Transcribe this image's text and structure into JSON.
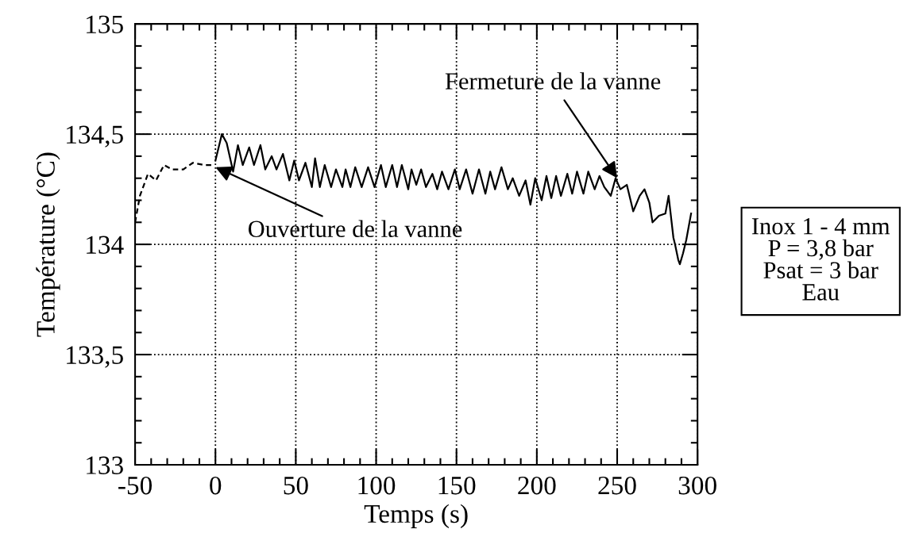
{
  "chart_data": {
    "type": "line",
    "xlabel": "Temps (s)",
    "ylabel": "Température (°C)",
    "xlim": [
      -50,
      300
    ],
    "ylim": [
      133,
      135
    ],
    "xticks": [
      -50,
      {
        "value": -40,
        "label": null
      },
      {
        "value": -30,
        "label": null
      },
      {
        "value": -20,
        "label": null
      },
      {
        "value": -10,
        "label": null
      },
      0,
      {
        "value": 10,
        "label": null
      },
      {
        "value": 20,
        "label": null
      },
      {
        "value": 30,
        "label": null
      },
      {
        "value": 40,
        "label": null
      },
      50,
      {
        "value": 60,
        "label": null
      },
      {
        "value": 70,
        "label": null
      },
      {
        "value": 80,
        "label": null
      },
      {
        "value": 90,
        "label": null
      },
      100,
      {
        "value": 110,
        "label": null
      },
      {
        "value": 120,
        "label": null
      },
      {
        "value": 130,
        "label": null
      },
      {
        "value": 140,
        "label": null
      },
      150,
      {
        "value": 160,
        "label": null
      },
      {
        "value": 170,
        "label": null
      },
      {
        "value": 180,
        "label": null
      },
      {
        "value": 190,
        "label": null
      },
      200,
      {
        "value": 210,
        "label": null
      },
      {
        "value": 220,
        "label": null
      },
      {
        "value": 230,
        "label": null
      },
      {
        "value": 240,
        "label": null
      },
      250,
      {
        "value": 260,
        "label": null
      },
      {
        "value": 270,
        "label": null
      },
      {
        "value": 280,
        "label": null
      },
      {
        "value": 290,
        "label": null
      },
      300
    ],
    "yticks": [
      133,
      {
        "value": 133.1,
        "label": null
      },
      {
        "value": 133.2,
        "label": null
      },
      {
        "value": 133.3,
        "label": null
      },
      {
        "value": 133.4,
        "label": null
      },
      {
        "value": 133.5,
        "label": "133,5"
      },
      {
        "value": 133.6,
        "label": null
      },
      {
        "value": 133.7,
        "label": null
      },
      {
        "value": 133.8,
        "label": null
      },
      {
        "value": 133.9,
        "label": null
      },
      134,
      {
        "value": 134.1,
        "label": null
      },
      {
        "value": 134.2,
        "label": null
      },
      {
        "value": 134.3,
        "label": null
      },
      {
        "value": 134.4,
        "label": null
      },
      {
        "value": 134.5,
        "label": "134,5"
      },
      {
        "value": 134.6,
        "label": null
      },
      {
        "value": 134.7,
        "label": null
      },
      {
        "value": 134.8,
        "label": null
      },
      {
        "value": 134.9,
        "label": null
      },
      135
    ],
    "grid": true,
    "legend": false,
    "series": [
      {
        "color": "#000000",
        "line_style": "dashed",
        "x": [
          -50,
          -47,
          -42,
          -37,
          -32,
          -27,
          -20,
          -14,
          -7,
          -2
        ],
        "values": [
          134.1,
          134.22,
          134.32,
          134.29,
          134.36,
          134.34,
          134.34,
          134.37,
          134.36,
          134.36
        ]
      },
      {
        "color": "#000000",
        "line_style": "solid",
        "x": [
          0,
          4,
          7,
          11,
          14,
          17,
          21,
          24,
          28,
          31,
          35,
          38,
          42,
          46,
          49,
          52,
          56,
          60,
          62,
          65,
          68,
          72,
          75,
          79,
          81,
          84,
          87,
          91,
          95,
          99,
          103,
          106,
          110,
          113,
          116,
          120,
          122,
          125,
          128,
          131,
          135,
          138,
          141,
          145,
          149,
          152,
          156,
          160,
          164,
          168,
          171,
          174,
          178,
          182,
          185,
          189,
          193,
          196,
          199,
          203,
          206,
          209,
          212,
          215,
          219,
          222,
          225,
          229,
          232,
          236,
          239,
          242,
          246,
          249,
          252,
          256,
          260,
          264,
          267,
          270,
          272,
          276,
          280,
          282,
          285,
          286,
          288,
          289,
          291,
          293,
          296
        ],
        "values": [
          134.38,
          134.5,
          134.46,
          134.33,
          134.45,
          134.36,
          134.44,
          134.36,
          134.45,
          134.34,
          134.4,
          134.34,
          134.41,
          134.29,
          134.38,
          134.29,
          134.37,
          134.26,
          134.39,
          134.26,
          134.36,
          134.26,
          134.34,
          134.26,
          134.34,
          134.26,
          134.35,
          134.26,
          134.35,
          134.26,
          134.36,
          134.26,
          134.36,
          134.26,
          134.36,
          134.25,
          134.34,
          134.27,
          134.34,
          134.26,
          134.32,
          134.25,
          134.33,
          134.25,
          134.34,
          134.25,
          134.34,
          134.23,
          134.34,
          134.23,
          134.33,
          134.25,
          134.35,
          134.25,
          134.3,
          134.22,
          134.29,
          134.18,
          134.3,
          134.2,
          134.31,
          134.21,
          134.31,
          134.22,
          134.32,
          134.23,
          134.33,
          134.23,
          134.33,
          134.25,
          134.31,
          134.26,
          134.22,
          134.3,
          134.25,
          134.27,
          134.15,
          134.22,
          134.25,
          134.19,
          134.1,
          134.13,
          134.14,
          134.22,
          134.03,
          134.0,
          133.93,
          133.91,
          133.96,
          134.02,
          134.14
        ]
      }
    ],
    "annotations": [
      {
        "text": "Ouverture de la vanne",
        "x": 0,
        "y": 134.35
      },
      {
        "text": "Fermeture de la vanne",
        "x": 250,
        "y": 134.3
      },
      "Inox 1 - 4 mm\nP = 3,8 bar\nPsat = 3 bar\nEau"
    ]
  }
}
